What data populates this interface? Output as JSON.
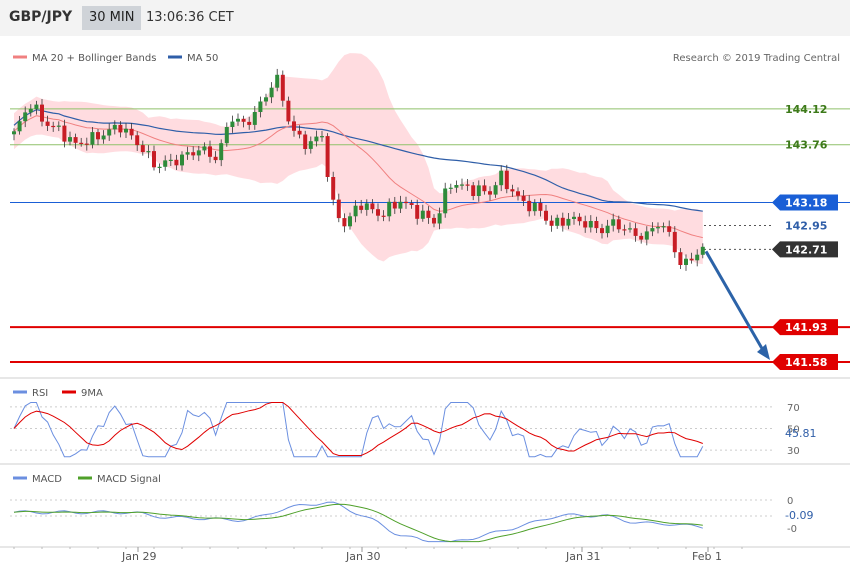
{
  "header": {
    "symbol": "GBP/JPY",
    "timeframe": "30 MIN",
    "time": "13:06:36 CET"
  },
  "colors": {
    "bollinger": "#f08080",
    "band_fill": "#ffd6da",
    "ma50": "#2f5ea8",
    "bull": "#2e8b3a",
    "bear": "#c81d25",
    "green_level": "#8fc16a",
    "red_level": "#e00000",
    "blue_level": "#1a5fd6",
    "rsi": "#6b8fe0",
    "nine_ma": "#e00000",
    "macd": "#6b8fe0",
    "macd_signal": "#4fa02a",
    "arrow": "#2c63a8"
  },
  "chart_data": [
    {
      "type": "line",
      "title": "",
      "legend": [
        "MA 20 + Bollinger Bands",
        "MA 50"
      ],
      "legend_position": "top-left",
      "source_note": "Research © 2019 Trading Central",
      "y_axis": "right",
      "ylim": [
        141.42,
        144.55
      ],
      "levels": [
        {
          "value": 144.12,
          "label": "144.12",
          "kind": "resistance"
        },
        {
          "value": 143.76,
          "label": "143.76",
          "kind": "resistance"
        },
        {
          "value": 143.18,
          "label": "143.18",
          "kind": "pivot"
        },
        {
          "value": 142.95,
          "label": "142.95",
          "kind": "current-ma"
        },
        {
          "value": 142.71,
          "label": "142.71",
          "kind": "last"
        },
        {
          "value": 141.93,
          "label": "141.93",
          "kind": "support"
        },
        {
          "value": 141.58,
          "label": "141.58",
          "kind": "support"
        }
      ],
      "x_ticks": [
        "Jan 29",
        "Jan 30",
        "Jan 31",
        "Feb 1"
      ],
      "projection": {
        "from": 142.71,
        "to": 141.58
      }
    },
    {
      "type": "line",
      "legend": [
        "RSI",
        "9MA"
      ],
      "ylim": [
        20,
        80
      ],
      "ticks": [
        70,
        50,
        30
      ],
      "current": "45.81"
    },
    {
      "type": "line",
      "legend": [
        "MACD",
        "MACD Signal"
      ],
      "ylim": [
        -0.45,
        0.3
      ],
      "ticks": [
        "0",
        "-0"
      ],
      "current": "-0.09"
    }
  ]
}
